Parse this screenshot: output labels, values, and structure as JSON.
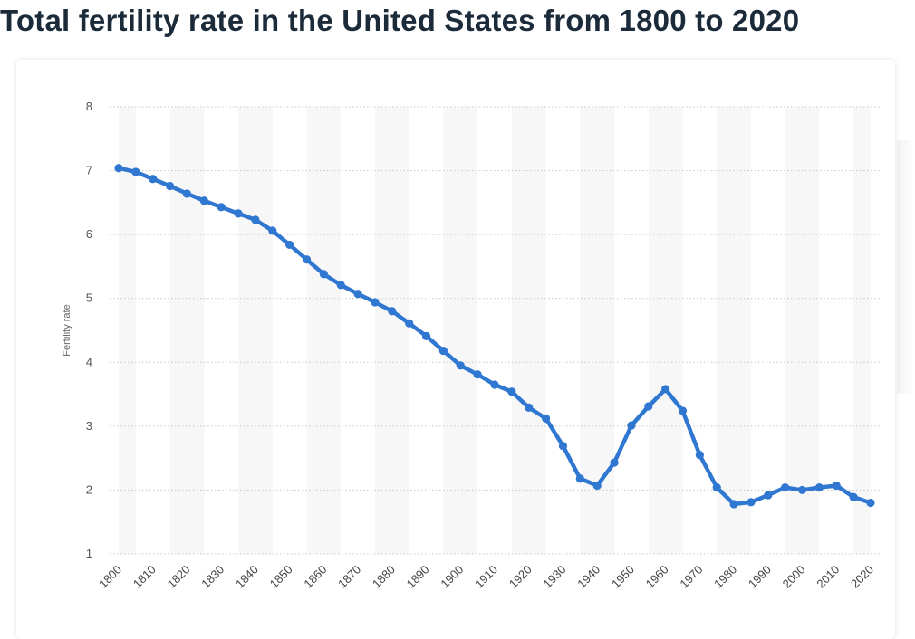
{
  "title": "Total fertility rate in the United States from 1800 to 2020",
  "chart_data": {
    "type": "line",
    "title": "Total fertility rate in the United States from 1800 to 2020",
    "xlabel": "",
    "ylabel": "Fertility rate",
    "ylim": [
      1,
      8
    ],
    "xlim": [
      1800,
      2020
    ],
    "yticks": [
      1,
      2,
      3,
      4,
      5,
      6,
      7,
      8
    ],
    "xticks": [
      1800,
      1810,
      1820,
      1830,
      1840,
      1850,
      1860,
      1870,
      1880,
      1890,
      1900,
      1910,
      1920,
      1930,
      1940,
      1950,
      1960,
      1970,
      1980,
      1990,
      2000,
      2010,
      2020
    ],
    "grid": true,
    "line_color": "#2f77d1",
    "x": [
      1800,
      1805,
      1810,
      1815,
      1820,
      1825,
      1830,
      1835,
      1840,
      1845,
      1850,
      1855,
      1860,
      1865,
      1870,
      1875,
      1880,
      1885,
      1890,
      1895,
      1900,
      1905,
      1910,
      1915,
      1920,
      1925,
      1930,
      1935,
      1940,
      1945,
      1950,
      1955,
      1960,
      1965,
      1970,
      1975,
      1980,
      1985,
      1990,
      1995,
      2000,
      2005,
      2010,
      2015,
      2020
    ],
    "series": [
      {
        "values": [
          7.04,
          6.98,
          6.87,
          6.76,
          6.64,
          6.53,
          6.43,
          6.33,
          6.23,
          6.06,
          5.84,
          5.61,
          5.38,
          5.21,
          5.07,
          4.94,
          4.8,
          4.61,
          4.41,
          4.18,
          3.95,
          3.81,
          3.65,
          3.54,
          3.29,
          3.12,
          2.69,
          2.18,
          2.07,
          2.43,
          3.01,
          3.31,
          3.58,
          3.24,
          2.55,
          2.04,
          1.78,
          1.81,
          1.92,
          2.04,
          2.0,
          2.04,
          2.07,
          1.89,
          1.8
        ]
      }
    ]
  }
}
